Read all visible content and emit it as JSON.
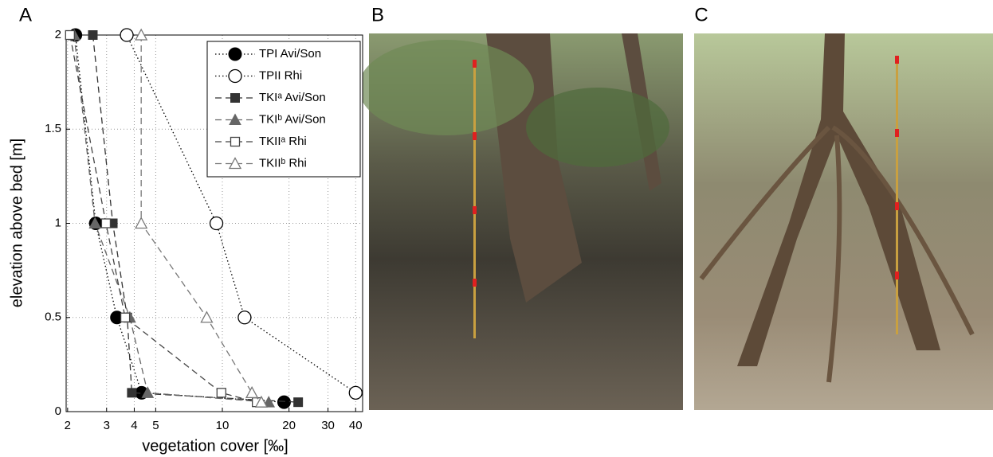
{
  "chart_data": {
    "type": "line",
    "panel_label": "A",
    "xlabel": "vegetation cover [‰]",
    "ylabel": "elevation above bed [m]",
    "xscale": "log",
    "xlim": [
      1.97,
      43
    ],
    "xticks": [
      2,
      3,
      4,
      5,
      10,
      20,
      30,
      40
    ],
    "ylim": [
      0,
      2
    ],
    "yticks": [
      0,
      0.5,
      1,
      1.5,
      2
    ],
    "grid": true,
    "legend": "upper right",
    "series": [
      {
        "name": "TPI Avi/Son",
        "color": "#000000",
        "marker": "filled-circle",
        "line_style": "dotted",
        "x": [
          2.17,
          2.68,
          3.34,
          4.32,
          19
        ],
        "values": [
          2,
          1,
          0.5,
          0.1,
          0.05
        ]
      },
      {
        "name": "TPII Rhi",
        "color": "#000000",
        "marker": "open-circle",
        "line_style": "dotted",
        "x": [
          3.7,
          9.4,
          12.6,
          40
        ],
        "values": [
          2,
          1,
          0.5,
          0.1
        ]
      },
      {
        "name": "TKIᵃ Avi/Son",
        "color": "#333333",
        "marker": "filled-square",
        "line_style": "dashed",
        "x": [
          2.6,
          3.2,
          3.72,
          3.9,
          22
        ],
        "values": [
          2,
          1,
          0.5,
          0.1,
          0.05
        ]
      },
      {
        "name": "TKIᵇ Avi/Son",
        "color": "#666666",
        "marker": "filled-triangle",
        "line_style": "dashed",
        "x": [
          2.14,
          2.66,
          3.82,
          4.6,
          16.2
        ],
        "values": [
          2,
          1,
          0.5,
          0.1,
          0.05
        ]
      },
      {
        "name": "TKIIᵃ Rhi",
        "color": "#444444",
        "marker": "open-square",
        "line_style": "dashed",
        "x": [
          2.05,
          2.98,
          3.64,
          9.9,
          14.3
        ],
        "values": [
          2,
          1,
          0.5,
          0.1,
          0.05
        ]
      },
      {
        "name": "TKIIᵇ Rhi",
        "color": "#777777",
        "marker": "open-triangle",
        "line_style": "dashed",
        "x": [
          4.3,
          4.3,
          8.5,
          13.6,
          15
        ],
        "values": [
          2,
          1,
          0.5,
          0.1,
          0.05
        ]
      }
    ]
  },
  "photos": [
    {
      "label": "B"
    },
    {
      "label": "C"
    }
  ]
}
